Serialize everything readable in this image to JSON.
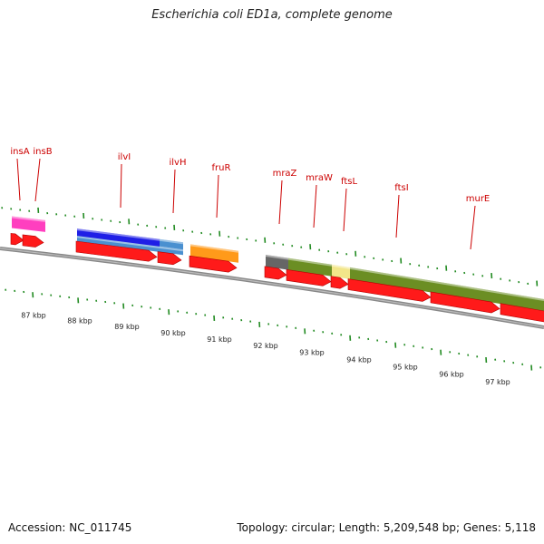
{
  "title": "Escherichia coli ED1a, complete genome",
  "footer": {
    "accession": "Accession: NC_011745",
    "summary": "Topology: circular; Length: 5,209,548 bp; Genes: 5,118"
  },
  "colors": {
    "cds_arrow": "#ff1a1a",
    "backbone": "#888888",
    "tick": "#228b22",
    "label": "#cc0000",
    "leader": "#cc0000",
    "insA_feature": "#ff3fbf",
    "ilvI_feature": "#1f1fe6",
    "ilvH_feature": "#4a90d0",
    "fruR_feature": "#ff9a1a",
    "mraZ_feature": "#666666",
    "operon_feature": "#6b8e23",
    "ftsL_feature": "#f2e68a"
  },
  "gene_labels": [
    "insA",
    "insB",
    "ilvI",
    "ilvH",
    "fruR",
    "mraZ",
    "mraW",
    "ftsL",
    "ftsI",
    "murE"
  ],
  "kbp_labels": [
    "87 kbp",
    "88 kbp",
    "89 kbp",
    "90 kbp",
    "91 kbp",
    "92 kbp",
    "93 kbp",
    "94 kbp",
    "95 kbp",
    "96 kbp",
    "97 kbp"
  ]
}
